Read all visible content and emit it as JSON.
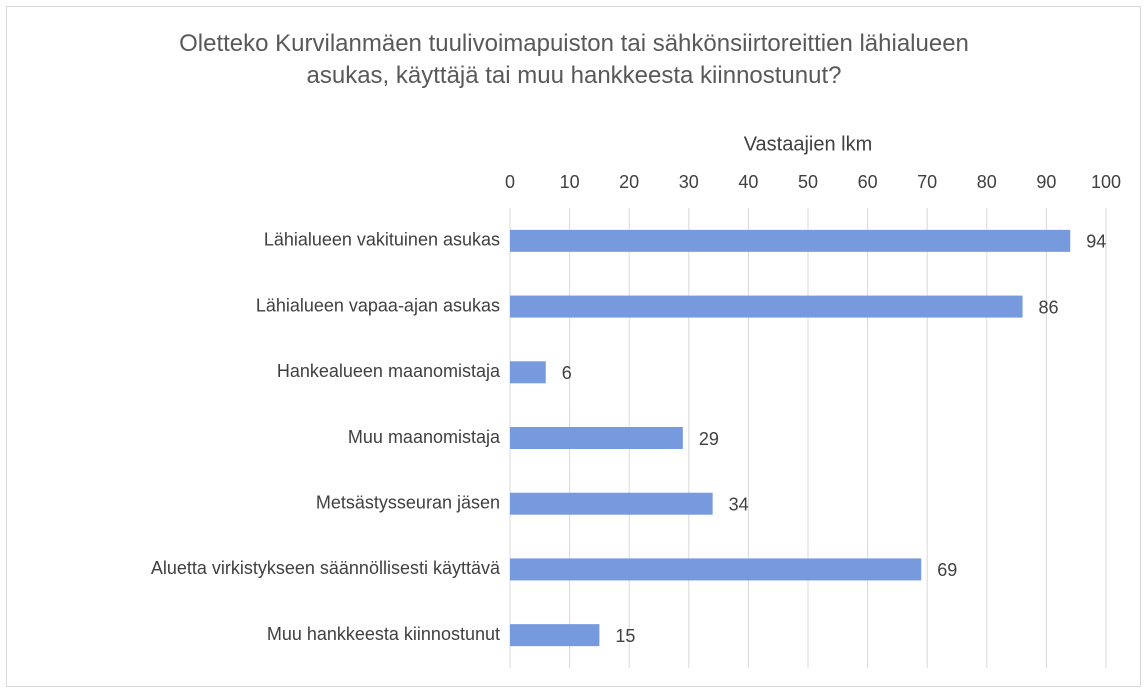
{
  "chart_data": {
    "type": "bar",
    "orientation": "horizontal",
    "title": "Oletteko Kurvilanmäen tuulivoimapuiston tai sähkönsiirtoreittien lähialueen asukas, käyttäjä tai muu hankkeesta kiinnostunut?",
    "x_label": "Vastaajien lkm",
    "categories": [
      "Lähialueen vakituinen asukas",
      "Lähialueen vapaa-ajan asukas",
      "Hankealueen maanomistaja",
      "Muu maanomistaja",
      "Metsästysseuran jäsen",
      "Aluetta virkistykseen säännöllisesti käyttävä",
      "Muu hankkeesta kiinnostunut"
    ],
    "values": [
      94,
      86,
      6,
      29,
      34,
      69,
      15
    ],
    "color": "#779ade",
    "xlim": [
      0,
      100
    ],
    "xticks": [
      0,
      10,
      20,
      30,
      40,
      50,
      60,
      70,
      80,
      90,
      100
    ],
    "grid": true
  }
}
